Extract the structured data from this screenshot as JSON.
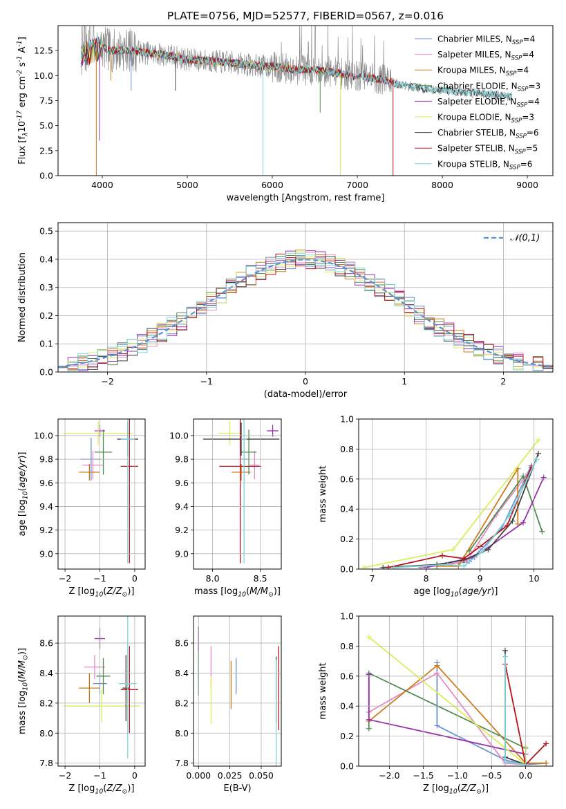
{
  "figure_title": "PLATE=0756, MJD=52577, FIBERID=0567, z=0.016",
  "colors": {
    "Chabrier MILES": "#6a8fd4",
    "Salpeter MILES": "#e78ac3",
    "Kroupa MILES": "#cc7a1a",
    "Chabrier ELODIE": "#4f8a4f",
    "Salpeter ELODIE": "#9b2fae",
    "Kroupa ELODIE": "#d9ee5b",
    "Chabrier STELIB": "#404040",
    "Salpeter STELIB": "#b5121b",
    "Kroupa STELIB": "#7fd6dd",
    "gaussian": "#5b8fd6",
    "spectrum_data": "#8c8c8c"
  },
  "chart_data": [
    {
      "id": "spectrum",
      "type": "line",
      "title": "PLATE=0756, MJD=52577, FIBERID=0567, z=0.016",
      "xlabel": "wavelength [Angstrom, rest frame]",
      "ylabel": "Flux [f$_\\lambda$10$^{-17}$ erg cm$^{-2}$ s$^{-1}$ A$^{-1}$]",
      "xlim": [
        3480,
        9300
      ],
      "ylim": [
        0,
        15
      ],
      "xticks": [
        4000,
        5000,
        6000,
        7000,
        8000,
        9000
      ],
      "yticks": [
        0.0,
        2.5,
        5.0,
        7.5,
        10.0,
        12.5
      ],
      "grid": false,
      "legend_position": "top-right",
      "legend": [
        "Chabrier MILES, N$_{SSP}$=4",
        "Salpeter MILES, N$_{SSP}$=4",
        "Kroupa MILES, N$_{SSP}$=4",
        "Chabrier ELODIE, N$_{SSP}$=3",
        "Salpeter ELODIE, N$_{SSP}$=4",
        "Kroupa ELODIE, N$_{SSP}$=3",
        "Chabrier STELIB, N$_{SSP}$=6",
        "Salpeter STELIB, N$_{SSP}$=5",
        "Kroupa STELIB, N$_{SSP}$=6"
      ],
      "continuum": {
        "x": [
          3750,
          3900,
          4000,
          4100,
          4300,
          4500,
          4800,
          5000,
          5200,
          5500,
          5800,
          6000,
          6300,
          6500,
          6800,
          7000,
          7300,
          7500,
          7700,
          7900,
          8100,
          8300,
          8500,
          8700,
          8820
        ],
        "y": [
          12.0,
          12.6,
          12.8,
          12.5,
          12.6,
          12.3,
          12.0,
          11.6,
          11.5,
          11.3,
          11.0,
          10.9,
          10.6,
          10.6,
          10.2,
          9.9,
          9.6,
          9.1,
          8.8,
          8.6,
          8.5,
          8.3,
          8.2,
          8.0,
          7.9
        ]
      },
      "model_ranges": [
        [
          3750,
          7420
        ],
        [
          3750,
          7420
        ],
        [
          3750,
          7420
        ],
        [
          3750,
          6800
        ],
        [
          3750,
          6800
        ],
        [
          3750,
          6800
        ],
        [
          3750,
          8820
        ],
        [
          3750,
          7420
        ],
        [
          3750,
          8820
        ]
      ]
    },
    {
      "id": "residuals",
      "type": "line",
      "xlabel": "(data-model)/error",
      "ylabel": "Normed distribution",
      "xlim": [
        -2.5,
        2.5
      ],
      "ylim": [
        0,
        0.53
      ],
      "xticks": [
        -2,
        -1,
        0,
        1,
        2
      ],
      "yticks": [
        0.0,
        0.1,
        0.2,
        0.3,
        0.4,
        0.5
      ],
      "grid": true,
      "legend": [
        "$\\mathcal{N}(0,1)$"
      ],
      "legend_position": "top-right",
      "bin_width": 0.1
    },
    {
      "id": "age-vs-Z",
      "type": "scatter",
      "xlabel": "Z [log$_{10}$($Z/Z_\\odot$)]",
      "ylabel": "age  [log$_{10}$($age/yr$)]",
      "xlim": [
        -2.2,
        0.3
      ],
      "ylim": [
        8.87,
        10.14
      ],
      "xticks": [
        -2,
        -1,
        0
      ],
      "yticks": [
        9.0,
        9.2,
        9.4,
        9.6,
        9.8,
        10.0
      ],
      "grid": true,
      "points": [
        {
          "x": -1.25,
          "xerr": 0.3,
          "y": 9.8,
          "yerr": 0.18
        },
        {
          "x": -1.2,
          "xerr": 0.3,
          "y": 9.75,
          "yerr": 0.12
        },
        {
          "x": -1.3,
          "xerr": 0.3,
          "y": 9.69,
          "yerr": 0.07
        },
        {
          "x": -0.9,
          "xerr": 0.25,
          "y": 9.86,
          "yerr": 0.19
        },
        {
          "x": -1.0,
          "xerr": 0.15,
          "y": 10.04,
          "yerr": 0.05
        },
        {
          "x": -1.05,
          "xerr": 1.0,
          "y": 10.02,
          "yerr": 0.1
        },
        {
          "x": -0.2,
          "xerr": 0.3,
          "y": 9.97,
          "yerr": 0.14
        },
        {
          "x": -0.15,
          "xerr": 0.25,
          "y": 9.74,
          "yerr": 0.82
        },
        {
          "x": -0.2,
          "xerr": 0.2,
          "y": 9.97,
          "yerr": 1.05
        }
      ]
    },
    {
      "id": "age-vs-mass",
      "type": "scatter",
      "xlabel": "mass [log$_{10}$($M/M_\\odot$)]",
      "ylabel": "",
      "xlim": [
        7.8,
        8.72
      ],
      "ylim": [
        8.87,
        10.14
      ],
      "xticks": [
        8.0,
        8.5
      ],
      "yticks": [
        9.0,
        9.2,
        9.4,
        9.6,
        9.8,
        10.0
      ],
      "grid": true,
      "points": [
        {
          "x": 8.33,
          "xerr": 0.05,
          "y": 9.8,
          "yerr": 0.18
        },
        {
          "x": 8.44,
          "xerr": 0.05,
          "y": 9.75,
          "yerr": 0.12
        },
        {
          "x": 8.3,
          "xerr": 0.1,
          "y": 9.69,
          "yerr": 0.07
        },
        {
          "x": 8.38,
          "xerr": 0.08,
          "y": 9.86,
          "yerr": 0.19
        },
        {
          "x": 8.63,
          "xerr": 0.06,
          "y": 10.04,
          "yerr": 0.05
        },
        {
          "x": 8.18,
          "xerr": 0.12,
          "y": 10.02,
          "yerr": 0.1
        },
        {
          "x": 8.3,
          "xerr": 0.4,
          "y": 9.97,
          "yerr": 0.14
        },
        {
          "x": 8.29,
          "xerr": 0.22,
          "y": 9.74,
          "yerr": 0.82
        },
        {
          "x": 8.33,
          "xerr": 0.03,
          "y": 9.97,
          "yerr": 1.05
        }
      ]
    },
    {
      "id": "massweight-vs-age",
      "type": "line",
      "xlabel": "age  [log$_{10}$($age/yr$)]",
      "ylabel": "mass weight",
      "xlim": [
        6.75,
        10.35
      ],
      "ylim": [
        0,
        1.0
      ],
      "xticks": [
        7,
        8,
        9,
        10
      ],
      "yticks": [
        0.0,
        0.2,
        0.4,
        0.6,
        0.8,
        1.0
      ],
      "grid": true,
      "series": [
        {
          "x": [
            7.9,
            8.8,
            9.4,
            9.95
          ],
          "y": [
            0.01,
            0.05,
            0.27,
            0.69
          ]
        },
        {
          "x": [
            7.9,
            8.75,
            9.3,
            9.85
          ],
          "y": [
            0.01,
            0.05,
            0.36,
            0.62
          ]
        },
        {
          "x": [
            8.2,
            8.6,
            9.7,
            9.7
          ],
          "y": [
            0.02,
            0.02,
            0.67,
            0.3
          ]
        },
        {
          "x": [
            8.8,
            9.8,
            10.15
          ],
          "y": [
            0.12,
            0.62,
            0.25
          ]
        },
        {
          "x": [
            8.0,
            8.9,
            9.8,
            10.18
          ],
          "y": [
            0.01,
            0.08,
            0.31,
            0.61
          ]
        },
        {
          "x": [
            6.85,
            8.5,
            10.08
          ],
          "y": [
            0.01,
            0.13,
            0.86
          ]
        },
        {
          "x": [
            7.2,
            8.2,
            8.7,
            9.15,
            9.6,
            10.08
          ],
          "y": [
            0.01,
            0.03,
            0.06,
            0.13,
            0.32,
            0.77
          ]
        },
        {
          "x": [
            7.3,
            8.3,
            8.7,
            9.0,
            9.5,
            9.95
          ],
          "y": [
            0.01,
            0.09,
            0.07,
            0.15,
            0.29,
            0.68
          ]
        },
        {
          "x": [
            7.4,
            8.4,
            8.7,
            9.05,
            9.55,
            10.05
          ],
          "y": [
            0.01,
            0.03,
            0.02,
            0.12,
            0.36,
            0.73
          ]
        }
      ]
    },
    {
      "id": "mass-vs-Z",
      "type": "scatter",
      "xlabel": "Z [log$_{10}$($Z/Z_\\odot$)]",
      "ylabel": "mass [log$_{10}$($M/M_\\odot$)]",
      "xlim": [
        -2.2,
        0.3
      ],
      "ylim": [
        7.78,
        8.78
      ],
      "xticks": [
        -2,
        -1,
        0
      ],
      "yticks": [
        7.8,
        8.0,
        8.2,
        8.4,
        8.6
      ],
      "grid": true,
      "points": [
        {
          "x": -1.0,
          "xerr": 0.2,
          "y": 8.33,
          "yerr": 0.07
        },
        {
          "x": -1.15,
          "xerr": 0.3,
          "y": 8.44,
          "yerr": 0.08
        },
        {
          "x": -1.3,
          "xerr": 0.3,
          "y": 8.3,
          "yerr": 0.1
        },
        {
          "x": -0.9,
          "xerr": 0.2,
          "y": 8.38,
          "yerr": 0.12
        },
        {
          "x": -1.0,
          "xerr": 0.15,
          "y": 8.63,
          "yerr": 0.07
        },
        {
          "x": -0.95,
          "xerr": 1.1,
          "y": 8.18,
          "yerr": 0.11
        },
        {
          "x": -0.25,
          "xerr": 0.1,
          "y": 8.3,
          "yerr": 0.22
        },
        {
          "x": -0.15,
          "xerr": 0.25,
          "y": 8.29,
          "yerr": 0.29
        },
        {
          "x": -0.2,
          "xerr": 0.25,
          "y": 8.33,
          "yerr": 0.5
        }
      ]
    },
    {
      "id": "mass-vs-EBV",
      "type": "scatter",
      "xlabel": "E(B-V)",
      "ylabel": "",
      "xlim": [
        -0.004,
        0.066
      ],
      "ylim": [
        7.78,
        8.78
      ],
      "xticks": [
        0.0,
        0.025,
        0.05
      ],
      "xtick_labels": [
        "0.000",
        "0.025",
        "0.050"
      ],
      "yticks": [
        7.8,
        8.0,
        8.2,
        8.4,
        8.6
      ],
      "grid": true,
      "points": [
        {
          "x": 0.03,
          "y": 8.38,
          "yerr": 0.12
        },
        {
          "x": 0.01,
          "y": 8.44,
          "yerr": 0.14
        },
        {
          "x": 0.026,
          "y": 8.32,
          "yerr": 0.16
        },
        {
          "x": 0.0,
          "y": 8.43,
          "yerr": 0.18
        },
        {
          "x": 0.0,
          "y": 8.63,
          "yerr": 0.08
        },
        {
          "x": 0.01,
          "y": 8.22,
          "yerr": 0.16
        },
        {
          "x": 0.062,
          "y": 8.29,
          "yerr": 0.22
        },
        {
          "x": 0.064,
          "y": 8.3,
          "yerr": 0.28
        },
        {
          "x": 0.062,
          "y": 8.13,
          "yerr": 0.36
        }
      ]
    },
    {
      "id": "massweight-vs-Z",
      "type": "line",
      "xlabel": "Z [log$_{10}$($Z/Z_\\odot$)]",
      "ylabel": "mass weight",
      "xlim": [
        -2.45,
        0.4
      ],
      "ylim": [
        0,
        1.0
      ],
      "xticks": [
        -2.0,
        -1.5,
        -1.0,
        -0.5,
        0.0
      ],
      "yticks": [
        0.0,
        0.2,
        0.4,
        0.6,
        0.8,
        1.0
      ],
      "grid": true,
      "series": [
        {
          "x": [
            -1.3,
            -1.3,
            -0.3,
            0.0,
            0.3
          ],
          "y": [
            0.69,
            0.27,
            0.04,
            0.01,
            0.02
          ]
        },
        {
          "x": [
            -2.3,
            -1.3,
            -0.3,
            0.0
          ],
          "y": [
            0.36,
            0.62,
            0.02,
            0.01
          ]
        },
        {
          "x": [
            -2.3,
            -1.3,
            0.0,
            0.3
          ],
          "y": [
            0.3,
            0.67,
            0.02,
            0.02
          ]
        },
        {
          "x": [
            -2.3,
            -2.3,
            0.0
          ],
          "y": [
            0.25,
            0.62,
            0.12
          ]
        },
        {
          "x": [
            -2.3,
            -2.3,
            0.0
          ],
          "y": [
            0.61,
            0.31,
            0.08
          ]
        },
        {
          "x": [
            -2.3,
            0.0,
            0.0
          ],
          "y": [
            0.86,
            0.01,
            0.13
          ]
        },
        {
          "x": [
            -0.3,
            -0.3,
            0.0
          ],
          "y": [
            0.77,
            0.06,
            0.01
          ]
        },
        {
          "x": [
            -0.3,
            0.0,
            0.3
          ],
          "y": [
            0.68,
            0.01,
            0.15
          ]
        },
        {
          "x": [
            -0.3,
            -0.3,
            0.0
          ],
          "y": [
            0.73,
            0.03,
            0.01
          ]
        }
      ]
    }
  ]
}
